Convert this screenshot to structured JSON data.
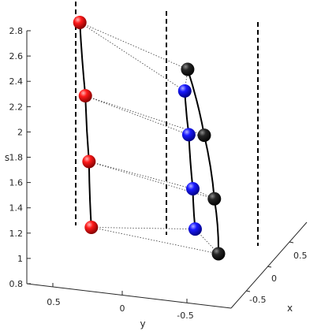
{
  "chart_data": {
    "type": "line3d",
    "xlabel": "x",
    "ylabel": "y",
    "zlabel": "s",
    "zlim": [
      0.8,
      2.8
    ],
    "z_ticks": [
      "0.8",
      "1",
      "1.2",
      "1.4",
      "1.6",
      "1.8",
      "2",
      "2.2",
      "2.4",
      "2.6",
      "2.8"
    ],
    "y_ticks": [
      "0.5",
      "0",
      "-0.5"
    ],
    "x_ticks": [
      "-0.5",
      "0",
      "0.5"
    ],
    "grid": false,
    "series": [
      {
        "color": "#ff0000",
        "points": [
          {
            "s": 1.05
          },
          {
            "s": 1.57
          },
          {
            "s": 2.09
          },
          {
            "s": 2.67
          }
        ]
      },
      {
        "color": "#0000ff",
        "points": [
          {
            "s": 1.41
          },
          {
            "s": 1.76
          },
          {
            "s": 2.23
          },
          {
            "s": 2.61
          }
        ]
      },
      {
        "color": "#000000",
        "points": [
          {
            "s": 1.0
          },
          {
            "s": 1.45
          },
          {
            "s": 1.97
          },
          {
            "s": 2.51
          }
        ]
      }
    ],
    "dotted_connections": [
      [
        [
          0,
          0
        ],
        [
          1,
          0
        ]
      ],
      [
        [
          0,
          0
        ],
        [
          2,
          0
        ]
      ],
      [
        [
          1,
          0
        ],
        [
          2,
          0
        ]
      ],
      [
        [
          0,
          1
        ],
        [
          1,
          1
        ]
      ],
      [
        [
          0,
          1
        ],
        [
          2,
          1
        ]
      ],
      [
        [
          1,
          1
        ],
        [
          2,
          1
        ]
      ],
      [
        [
          0,
          2
        ],
        [
          1,
          2
        ]
      ],
      [
        [
          0,
          2
        ],
        [
          2,
          2
        ]
      ],
      [
        [
          1,
          2
        ],
        [
          2,
          2
        ]
      ],
      [
        [
          0,
          3
        ],
        [
          1,
          3
        ]
      ],
      [
        [
          0,
          3
        ],
        [
          2,
          3
        ]
      ],
      [
        [
          1,
          3
        ],
        [
          2,
          3
        ]
      ]
    ]
  }
}
